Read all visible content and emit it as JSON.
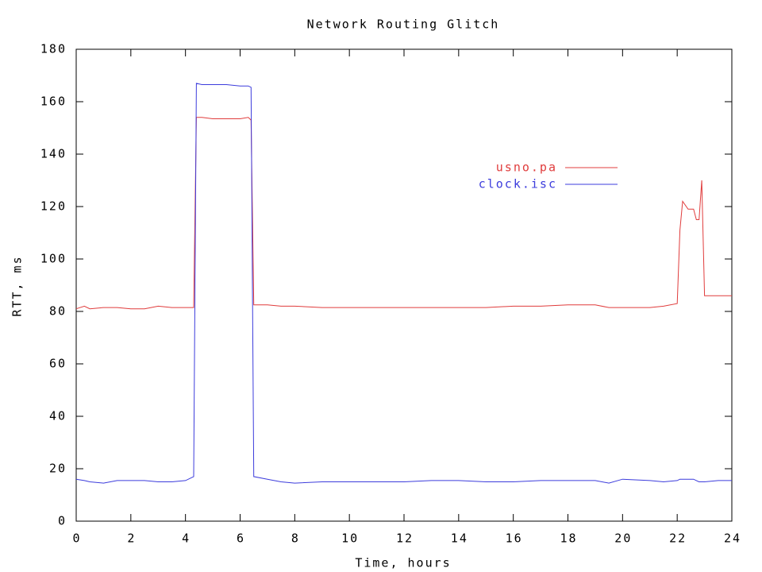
{
  "chart_data": {
    "type": "line",
    "title": "Network Routing Glitch",
    "x_label": "Time, hours",
    "y_label": "RTT, ms",
    "x": [
      0,
      0.3,
      0.5,
      1,
      1.5,
      2,
      2.5,
      3,
      3.5,
      4,
      4.3,
      4.4,
      4.6,
      5,
      5.5,
      6,
      6.3,
      6.4,
      6.5,
      7,
      7.5,
      8,
      9,
      10,
      11,
      12,
      13,
      14,
      15,
      16,
      17,
      18,
      19,
      19.5,
      20,
      21,
      21.5,
      22,
      22.1,
      22.2,
      22.4,
      22.6,
      22.7,
      22.8,
      22.9,
      23,
      23.5,
      24
    ],
    "series": [
      {
        "name": "usno.pa",
        "color": "#e03c3c",
        "values": [
          81,
          82,
          81,
          81.5,
          81.5,
          81,
          81,
          82,
          81.5,
          81.5,
          81.5,
          154,
          154,
          153.5,
          153.5,
          153.5,
          154,
          153,
          82.5,
          82.5,
          82,
          82,
          81.5,
          81.5,
          81.5,
          81.5,
          81.5,
          81.5,
          81.5,
          82,
          82,
          82.5,
          82.5,
          81.5,
          81.5,
          81.5,
          82,
          83,
          111,
          122,
          119,
          119,
          115,
          115,
          130,
          86,
          86,
          86
        ]
      },
      {
        "name": "clock.isc",
        "color": "#3c3cdc",
        "values": [
          16,
          15.5,
          15,
          14.5,
          15.5,
          15.5,
          15.5,
          15,
          15,
          15.5,
          17,
          167,
          166.5,
          166.5,
          166.5,
          166,
          166,
          165.5,
          17,
          16,
          15,
          14.5,
          15,
          15,
          15,
          15,
          15.5,
          15.5,
          15,
          15,
          15.5,
          15.5,
          15.5,
          14.5,
          16,
          15.5,
          15,
          15.5,
          16,
          16,
          16,
          16,
          15.5,
          15,
          15,
          15,
          15.5,
          15.5
        ]
      }
    ],
    "xlim": [
      0,
      24
    ],
    "xticks": [
      0,
      2,
      4,
      6,
      8,
      10,
      12,
      14,
      16,
      18,
      20,
      22,
      24
    ],
    "ylim": [
      0,
      180
    ],
    "yticks": [
      0,
      20,
      40,
      60,
      80,
      100,
      120,
      140,
      160,
      180
    ],
    "legend": "upper right",
    "grid": false
  }
}
